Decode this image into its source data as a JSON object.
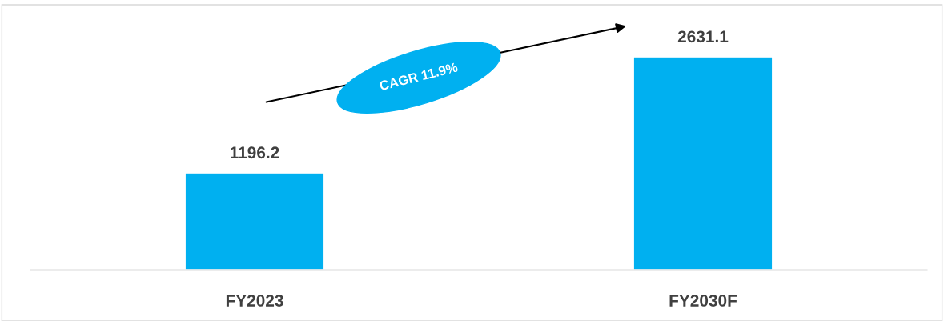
{
  "chart_data": {
    "type": "bar",
    "categories": [
      "FY2023",
      "FY2030F"
    ],
    "values": [
      1196.2,
      2631.1
    ],
    "color": "#00b0f0",
    "data_labels": true,
    "annotations": [
      "CAGR 11.9%"
    ],
    "grid": false,
    "legend": false
  }
}
